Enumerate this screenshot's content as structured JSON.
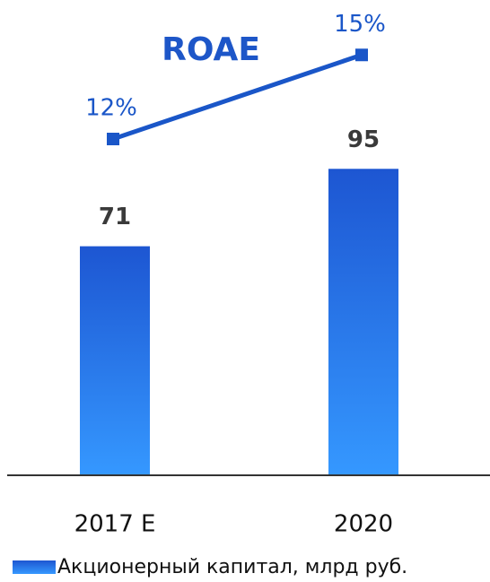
{
  "chart_data": {
    "type": "bar",
    "categories": [
      "2017 E",
      "2020"
    ],
    "series": [
      {
        "name": "Акционерный капитал, млрд руб.",
        "color": "#1f5ad6",
        "values": [
          71,
          95
        ]
      },
      {
        "name": "ROAE",
        "type": "line",
        "axis": "y2",
        "color": "#1a56c8",
        "values": [
          12,
          15
        ],
        "value_labels": [
          "12%",
          "15%"
        ]
      }
    ],
    "ylim": [
      0,
      139
    ],
    "y2lim": [
      0,
      16
    ],
    "legend": "bottom"
  }
}
